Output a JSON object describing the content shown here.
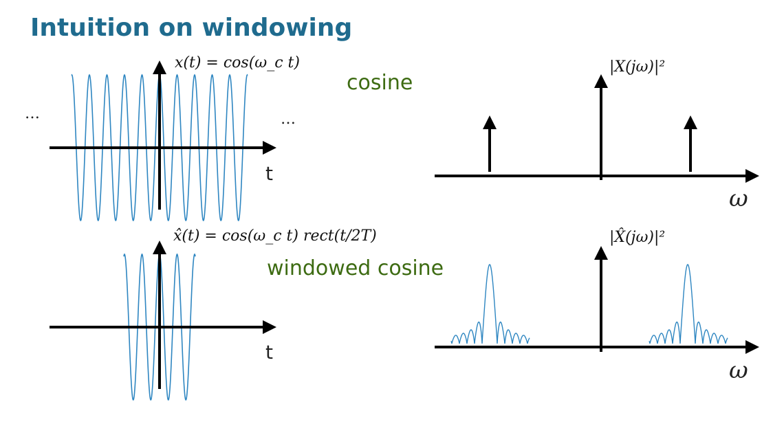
{
  "title": "Intuition on windowing",
  "colors": {
    "title": "#1f6b8e",
    "label_green": "#3d6b12",
    "wave": "#2e86c1",
    "axis": "#000000"
  },
  "top_panel": {
    "label": "cosine",
    "time_equation": "x(t) = cos(ω_c t)",
    "time_axis_label": "t",
    "ellipsis_left": "…",
    "ellipsis_right": "…",
    "freq_equation": "|X(jω)|²",
    "freq_axis_label": "ω"
  },
  "bottom_panel": {
    "label": "windowed cosine",
    "time_equation": "x̂(t) = cos(ω_c t) rect(t/2T)",
    "time_axis_label": "t",
    "freq_equation": "|X̂(jω)|²",
    "freq_axis_label": "ω"
  }
}
